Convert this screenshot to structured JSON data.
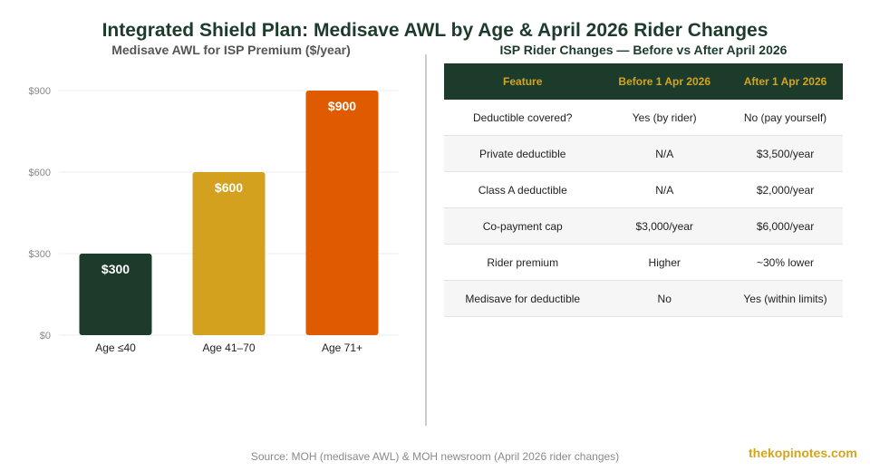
{
  "title": "Integrated Shield Plan: Medisave AWL by Age & April 2026 Rider Changes",
  "chart_data": {
    "type": "bar",
    "title": "Medisave AWL for ISP Premium ($/year)",
    "categories": [
      "Age ≤40",
      "Age 41–70",
      "Age 71+"
    ],
    "values": [
      300,
      600,
      900
    ],
    "value_labels": [
      "$300",
      "$600",
      "$900"
    ],
    "colors": [
      "#1c3b2b",
      "#d4a11e",
      "#e05a00"
    ],
    "yticks": [
      0,
      300,
      600,
      900
    ],
    "ytick_labels": [
      "$0",
      "$300",
      "$600",
      "$900"
    ],
    "ylim": [
      0,
      900
    ],
    "grid": true,
    "xlabel": "",
    "ylabel": ""
  },
  "table": {
    "title": "ISP Rider Changes — Before vs After April 2026",
    "headers": [
      "Feature",
      "Before 1 Apr 2026",
      "After 1 Apr 2026"
    ],
    "rows": [
      [
        "Deductible covered?",
        "Yes (by rider)",
        "No (pay yourself)"
      ],
      [
        "Private deductible",
        "N/A",
        "$3,500/year"
      ],
      [
        "Class A deductible",
        "N/A",
        "$2,000/year"
      ],
      [
        "Co-payment cap",
        "$3,000/year",
        "$6,000/year"
      ],
      [
        "Rider premium",
        "Higher",
        "~30% lower"
      ],
      [
        "Medisave for deductible",
        "No",
        "Yes (within limits)"
      ]
    ]
  },
  "source": "Source: MOH (medisave AWL) & MOH newsroom (April 2026 rider changes)",
  "brand": "thekopinotes.com"
}
